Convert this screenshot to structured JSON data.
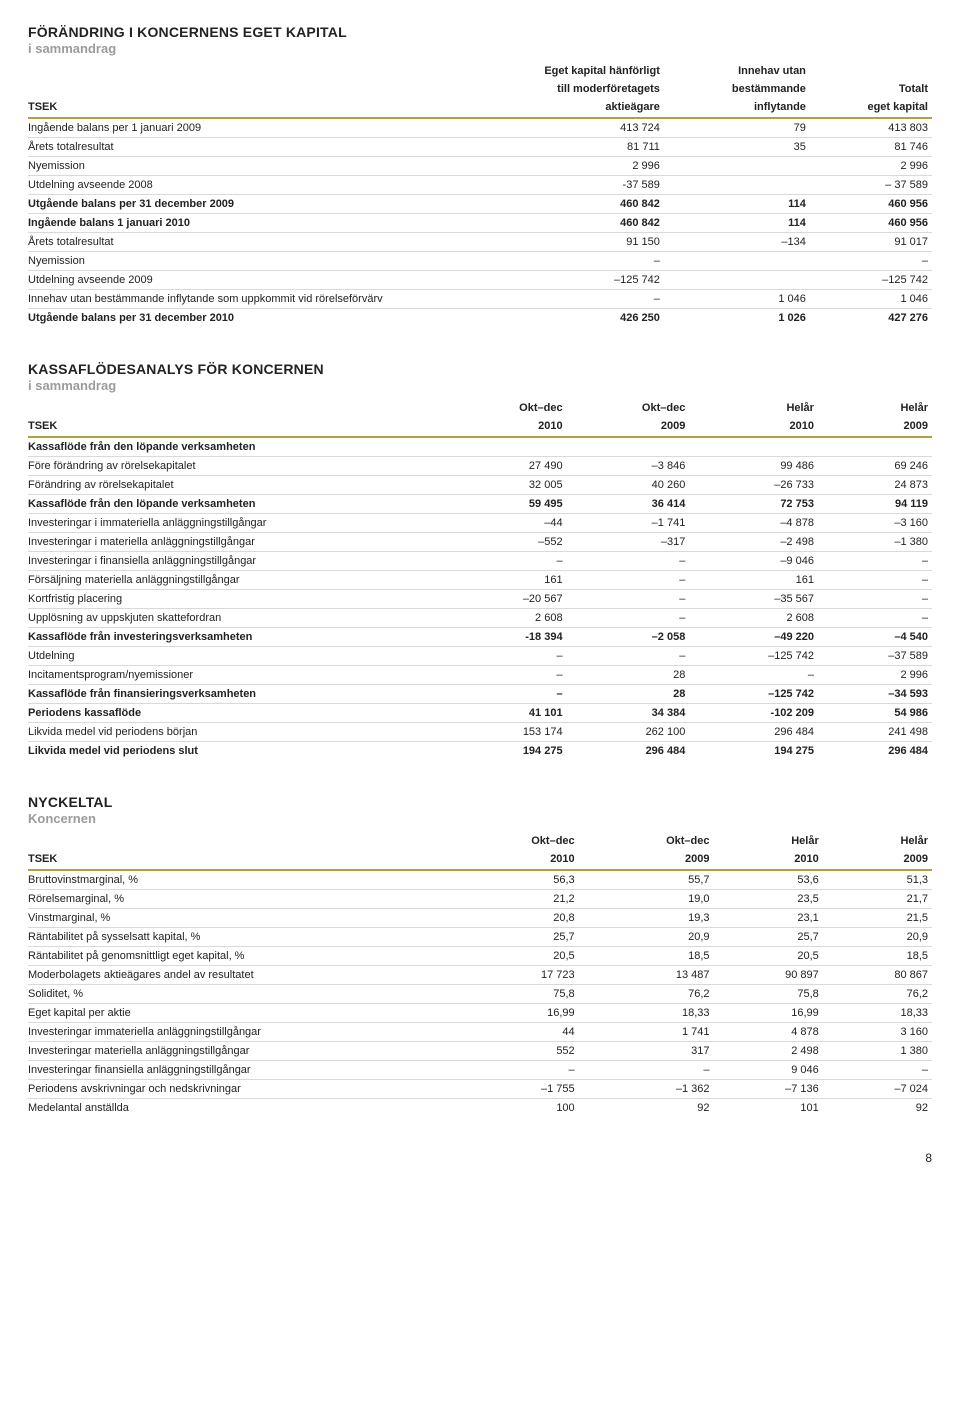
{
  "page_number": "8",
  "equity": {
    "heading": "FÖRÄNDRING I KONCERNENS EGET KAPITAL",
    "sub": "i sammandrag",
    "header": {
      "tsek": "TSEK",
      "col1a": "Eget kapital hänförligt",
      "col1b": "till moderföretagets",
      "col1c": "aktieägare",
      "col2a": "Innehav utan",
      "col2b": "bestämmande",
      "col2c": "inflytande",
      "col3a": "Totalt",
      "col3b": "eget kapital"
    },
    "rows": [
      {
        "label": "Ingående balans per 1 januari 2009",
        "c1": "413 724",
        "c2": "79",
        "c3": "413 803",
        "bold": false
      },
      {
        "label": "Årets totalresultat",
        "c1": "81 711",
        "c2": "35",
        "c3": "81 746",
        "bold": false
      },
      {
        "label": "Nyemission",
        "c1": "2 996",
        "c2": "",
        "c3": "2 996",
        "bold": false
      },
      {
        "label": "Utdelning avseende 2008",
        "c1": "-37 589",
        "c2": "",
        "c3": "– 37 589",
        "bold": false
      },
      {
        "label": "Utgående balans per 31 december 2009",
        "c1": "460 842",
        "c2": "114",
        "c3": "460 956",
        "bold": true
      },
      {
        "label": "Ingående balans 1 januari 2010",
        "c1": "460 842",
        "c2": "114",
        "c3": "460 956",
        "bold": true
      },
      {
        "label": "Årets totalresultat",
        "c1": "91 150",
        "c2": "–134",
        "c3": "91 017",
        "bold": false
      },
      {
        "label": "Nyemission",
        "c1": "–",
        "c2": "",
        "c3": "–",
        "bold": false
      },
      {
        "label": "Utdelning avseende 2009",
        "c1": "–125 742",
        "c2": "",
        "c3": "–125 742",
        "bold": false
      },
      {
        "label": "Innehav utan bestämmande inflytande som uppkommit vid rörelseförvärv",
        "c1": "–",
        "c2": "1 046",
        "c3": "1 046",
        "bold": false
      },
      {
        "label": "Utgående balans per 31 december 2010",
        "c1": "426 250",
        "c2": "1 026",
        "c3": "427 276",
        "bold": true
      }
    ]
  },
  "cashflow": {
    "heading": "KASSAFLÖDESANALYS FÖR KONCERNEN",
    "sub": "i sammandrag",
    "header": {
      "tsek": "TSEK",
      "c1a": "Okt–dec",
      "c1b": "2010",
      "c2a": "Okt–dec",
      "c2b": "2009",
      "c3a": "Helår",
      "c3b": "2010",
      "c4a": "Helår",
      "c4b": "2009"
    },
    "rows": [
      {
        "label": "Kassaflöde från den löpande verksamheten",
        "c1": "",
        "c2": "",
        "c3": "",
        "c4": "",
        "bold": true
      },
      {
        "label": "Före förändring av rörelsekapitalet",
        "c1": "27 490",
        "c2": "–3 846",
        "c3": "99 486",
        "c4": "69 246",
        "bold": false
      },
      {
        "label": "Förändring av rörelsekapitalet",
        "c1": "32 005",
        "c2": "40 260",
        "c3": "–26 733",
        "c4": "24 873",
        "bold": false
      },
      {
        "label": "Kassaflöde från den löpande verksamheten",
        "c1": "59 495",
        "c2": "36 414",
        "c3": "72 753",
        "c4": "94 119",
        "bold": true
      },
      {
        "label": "Investeringar i immateriella anläggningstillgångar",
        "c1": "–44",
        "c2": "–1 741",
        "c3": "–4 878",
        "c4": "–3 160",
        "bold": false
      },
      {
        "label": "Investeringar i materiella anläggningstillgångar",
        "c1": "–552",
        "c2": "–317",
        "c3": "–2 498",
        "c4": "–1 380",
        "bold": false
      },
      {
        "label": "Investeringar i finansiella anläggningstillgångar",
        "c1": "–",
        "c2": "–",
        "c3": "–9 046",
        "c4": "–",
        "bold": false
      },
      {
        "label": "Försäljning materiella anläggningstillgångar",
        "c1": "161",
        "c2": "–",
        "c3": "161",
        "c4": "–",
        "bold": false
      },
      {
        "label": "Kortfristig placering",
        "c1": "–20 567",
        "c2": "–",
        "c3": "–35 567",
        "c4": "–",
        "bold": false
      },
      {
        "label": "Upplösning av uppskjuten skattefordran",
        "c1": "2 608",
        "c2": "–",
        "c3": "2 608",
        "c4": "–",
        "bold": false
      },
      {
        "label": "Kassaflöde från investeringsverksamheten",
        "c1": "-18 394",
        "c2": "–2 058",
        "c3": "–49 220",
        "c4": "–4 540",
        "bold": true
      },
      {
        "label": "Utdelning",
        "c1": "–",
        "c2": "–",
        "c3": "–125 742",
        "c4": "–37 589",
        "bold": false
      },
      {
        "label": "Incitamentsprogram/nyemissioner",
        "c1": "–",
        "c2": "28",
        "c3": "–",
        "c4": "2 996",
        "bold": false
      },
      {
        "label": "Kassaflöde från finansieringsverksamheten",
        "c1": "–",
        "c2": "28",
        "c3": "–125 742",
        "c4": "–34 593",
        "bold": true
      },
      {
        "label": "Periodens kassaflöde",
        "c1": "41 101",
        "c2": "34 384",
        "c3": "-102 209",
        "c4": "54 986",
        "bold": true
      },
      {
        "label": "Likvida medel vid periodens början",
        "c1": "153 174",
        "c2": "262 100",
        "c3": "296 484",
        "c4": "241 498",
        "bold": false
      },
      {
        "label": "Likvida medel vid periodens slut",
        "c1": "194 275",
        "c2": "296 484",
        "c3": "194 275",
        "c4": "296 484",
        "bold": true
      }
    ]
  },
  "keyfigures": {
    "heading": "NYCKELTAL",
    "sub": "Koncernen",
    "header": {
      "tsek": "TSEK",
      "c1a": "Okt–dec",
      "c1b": "2010",
      "c2a": "Okt–dec",
      "c2b": "2009",
      "c3a": "Helår",
      "c3b": "2010",
      "c4a": "Helår",
      "c4b": "2009"
    },
    "rows": [
      {
        "label": "Bruttovinstmarginal, %",
        "c1": "56,3",
        "c2": "55,7",
        "c3": "53,6",
        "c4": "51,3",
        "bold": false
      },
      {
        "label": "Rörelsemarginal, %",
        "c1": "21,2",
        "c2": "19,0",
        "c3": "23,5",
        "c4": "21,7",
        "bold": false
      },
      {
        "label": "Vinstmarginal, %",
        "c1": "20,8",
        "c2": "19,3",
        "c3": "23,1",
        "c4": "21,5",
        "bold": false
      },
      {
        "label": "Räntabilitet på sysselsatt kapital, %",
        "c1": "25,7",
        "c2": "20,9",
        "c3": "25,7",
        "c4": "20,9",
        "bold": false
      },
      {
        "label": "Räntabilitet på genomsnittligt eget kapital, %",
        "c1": "20,5",
        "c2": "18,5",
        "c3": "20,5",
        "c4": "18,5",
        "bold": false
      },
      {
        "label": "Moderbolagets aktieägares andel av resultatet",
        "c1": "17 723",
        "c2": "13 487",
        "c3": "90 897",
        "c4": "80 867",
        "bold": false
      },
      {
        "label": "Soliditet, %",
        "c1": "75,8",
        "c2": "76,2",
        "c3": "75,8",
        "c4": "76,2",
        "bold": false
      },
      {
        "label": "Eget kapital per aktie",
        "c1": "16,99",
        "c2": "18,33",
        "c3": "16,99",
        "c4": "18,33",
        "bold": false
      },
      {
        "label": "Investeringar immateriella anläggningstillgångar",
        "c1": "44",
        "c2": "1 741",
        "c3": "4 878",
        "c4": "3 160",
        "bold": false
      },
      {
        "label": "Investeringar materiella anläggningstillgångar",
        "c1": "552",
        "c2": "317",
        "c3": "2 498",
        "c4": "1 380",
        "bold": false
      },
      {
        "label": "Investeringar finansiella anläggningstillgångar",
        "c1": "–",
        "c2": "–",
        "c3": "9 046",
        "c4": "–",
        "bold": false
      },
      {
        "label": "Periodens avskrivningar och nedskrivningar",
        "c1": "–1 755",
        "c2": "–1 362",
        "c3": "–7 136",
        "c4": "–7 024",
        "bold": false
      },
      {
        "label": "Medelantal anställda",
        "c1": "100",
        "c2": "92",
        "c3": "101",
        "c4": "92",
        "bold": false
      }
    ]
  },
  "style": {
    "rule_color": "#b59f3b",
    "row_line": "#d9d9d9",
    "sub_color": "#9b9b9b"
  }
}
